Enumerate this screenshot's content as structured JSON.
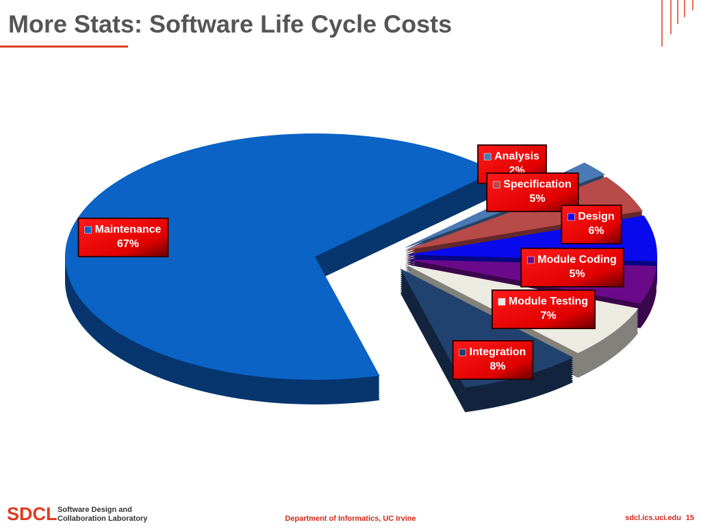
{
  "header": {
    "title": "More Stats: Software Life Cycle Costs"
  },
  "chart_data": {
    "type": "pie",
    "categories": [
      "Maintenance",
      "Analysis",
      "Specification",
      "Design",
      "Module Coding",
      "Module Testing",
      "Integration"
    ],
    "values": [
      67,
      2,
      5,
      6,
      5,
      7,
      8
    ],
    "value_labels": [
      "67%",
      "2%",
      "5%",
      "6%",
      "5%",
      "7%",
      "8%"
    ],
    "colors": [
      "#0b63c6",
      "#4a7ab5",
      "#b84a4a",
      "#0a0aee",
      "#6a0a8a",
      "#ecebe2",
      "#21426f"
    ]
  },
  "footer": {
    "logo": "SDCL",
    "lab_line1": "Software Design and",
    "lab_line2": "Collaboration Laboratory",
    "department": "Department of Informatics, UC Irvine",
    "url": "sdcl.ics.uci.edu",
    "page": "15"
  }
}
